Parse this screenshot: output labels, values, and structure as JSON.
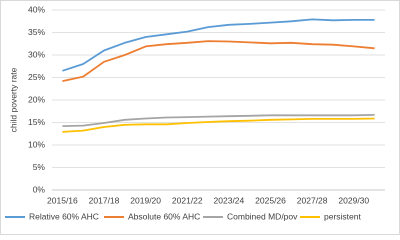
{
  "chart_data": {
    "type": "line",
    "y_label": "child poverty rate",
    "categories": [
      "2015/16",
      null,
      "2017/18",
      null,
      "2019/20",
      null,
      "2021/22",
      null,
      "2023/24",
      null,
      "2025/26",
      null,
      "2027/28",
      null,
      "2029/30",
      null
    ],
    "series": [
      {
        "name": "Relative 60% AHC",
        "color": "#5b9bd5",
        "values": [
          26.5,
          28,
          31,
          32.7,
          34,
          34.6,
          35.2,
          36.2,
          36.7,
          36.9,
          37.2,
          37.5,
          37.9,
          37.7,
          37.8,
          37.8
        ]
      },
      {
        "name": "Absolute 60% AHC",
        "color": "#ed7d31",
        "values": [
          24.2,
          25.2,
          28.5,
          30,
          31.9,
          32.4,
          32.7,
          33.1,
          33,
          32.8,
          32.6,
          32.7,
          32.4,
          32.3,
          31.9,
          31.5
        ]
      },
      {
        "name": "Combined MD/pov",
        "color": "#a5a5a5",
        "values": [
          14.2,
          14.3,
          14.9,
          15.6,
          15.9,
          16.1,
          16.2,
          16.3,
          16.4,
          16.5,
          16.6,
          16.6,
          16.6,
          16.6,
          16.6,
          16.7
        ]
      },
      {
        "name": "persistent",
        "color": "#ffc000",
        "values": [
          12.9,
          13.2,
          14,
          14.5,
          14.6,
          14.6,
          14.9,
          15.1,
          15.3,
          15.4,
          15.6,
          15.7,
          15.8,
          15.8,
          15.8,
          15.9
        ]
      }
    ],
    "ylim": [
      0,
      40
    ],
    "yticks": [
      {
        "value": 0,
        "label": "0%"
      },
      {
        "value": 5,
        "label": "5%"
      },
      {
        "value": 10,
        "label": "10%"
      },
      {
        "value": 15,
        "label": "15%"
      },
      {
        "value": 20,
        "label": "20%"
      },
      {
        "value": 25,
        "label": "25%"
      },
      {
        "value": 30,
        "label": "30%"
      },
      {
        "value": 35,
        "label": "35%"
      },
      {
        "value": 40,
        "label": "40%"
      }
    ],
    "grid": true,
    "legend": "bottom"
  }
}
